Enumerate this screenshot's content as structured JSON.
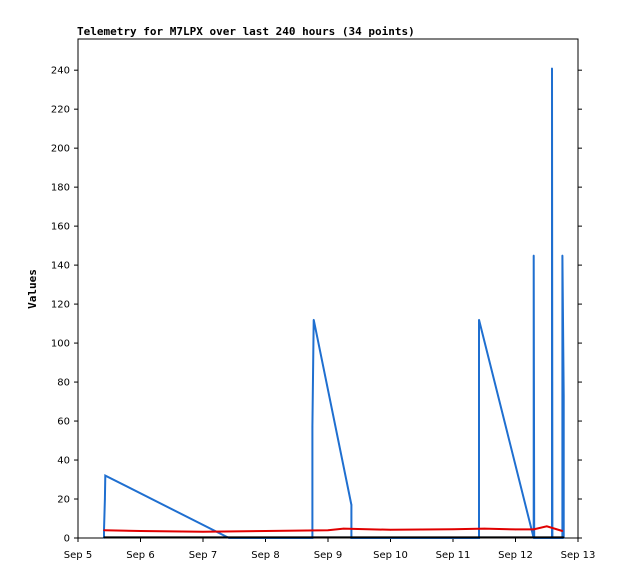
{
  "chart_data": {
    "type": "line",
    "title": "Telemetry for M7LPX over last 240 hours (34 points)",
    "xlabel": "",
    "ylabel": "Values",
    "x_ticks": [
      "Sep 5",
      "Sep 6",
      "Sep 7",
      "Sep 8",
      "Sep 9",
      "Sep 10",
      "Sep 11",
      "Sep 12",
      "Sep 13"
    ],
    "xlim": [
      "Sep 5",
      "Sep 13"
    ],
    "y_ticks": [
      0,
      20,
      40,
      60,
      80,
      100,
      120,
      140,
      160,
      180,
      200,
      220,
      240
    ],
    "ylim": [
      0,
      256
    ],
    "grid": false,
    "series": [
      {
        "color": "#1f6fd0",
        "points": [
          [
            "Sep 5 10:00",
            0
          ],
          [
            "Sep 5 10:00",
            4
          ],
          [
            "Sep 5 10:20",
            20
          ],
          [
            "Sep 5 10:30",
            32
          ],
          [
            "Sep 7 10:00",
            0
          ],
          [
            "Sep 8 18:00",
            0
          ],
          [
            "Sep 8 18:00",
            57
          ],
          [
            "Sep 8 18:30",
            112
          ],
          [
            "Sep 9 09:00",
            17
          ],
          [
            "Sep 9 09:00",
            0
          ],
          [
            "Sep 11 10:00",
            0
          ],
          [
            "Sep 11 10:00",
            112
          ],
          [
            "Sep 12 07:00",
            0
          ],
          [
            "Sep 12 07:00",
            145
          ],
          [
            "Sep 12 07:10",
            0
          ],
          [
            "Sep 12 14:00",
            0
          ],
          [
            "Sep 12 14:00",
            241
          ],
          [
            "Sep 12 14:10",
            0
          ],
          [
            "Sep 12 18:00",
            0
          ],
          [
            "Sep 12 18:00",
            145
          ],
          [
            "Sep 12 18:30",
            73
          ],
          [
            "Sep 12 18:30",
            0
          ]
        ]
      },
      {
        "color": "#e00000",
        "points": [
          [
            "Sep 5 10:00",
            4
          ],
          [
            "Sep 6 00:00",
            3.6
          ],
          [
            "Sep 7 00:00",
            3.2
          ],
          [
            "Sep 8 00:00",
            3.6
          ],
          [
            "Sep 9 00:00",
            4
          ],
          [
            "Sep 9 06:00",
            4.8
          ],
          [
            "Sep 10 00:00",
            4.2
          ],
          [
            "Sep 11 00:00",
            4.5
          ],
          [
            "Sep 11 12:00",
            4.8
          ],
          [
            "Sep 12 00:00",
            4.4
          ],
          [
            "Sep 12 07:00",
            4.4
          ],
          [
            "Sep 12 12:00",
            6
          ],
          [
            "Sep 12 18:00",
            3.6
          ]
        ]
      },
      {
        "color": "#000000",
        "points": [
          [
            "Sep 5 10:00",
            0.3
          ],
          [
            "Sep 12 18:30",
            0.3
          ]
        ]
      }
    ]
  }
}
